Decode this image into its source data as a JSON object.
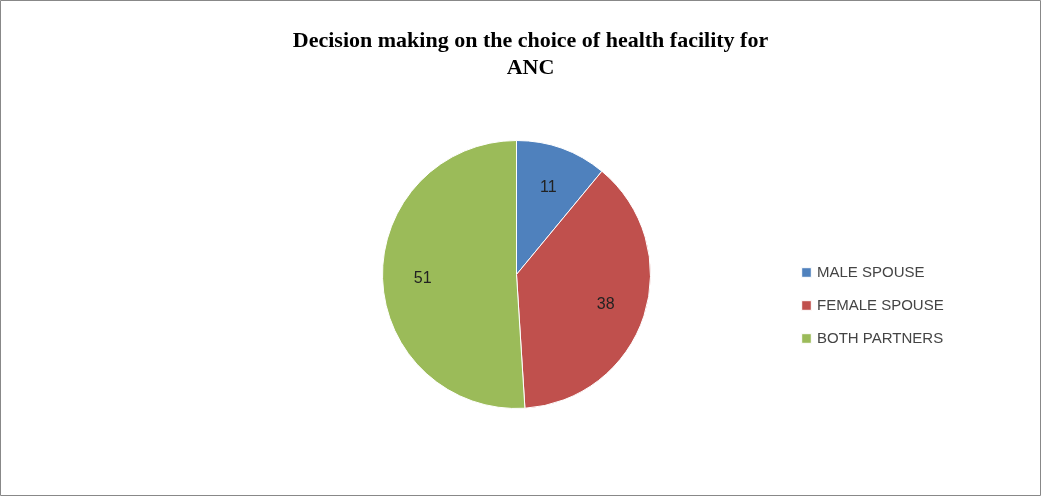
{
  "chart_data": {
    "type": "pie",
    "title": "Decision making on the choice of health facility for ANC",
    "categories": [
      "MALE SPOUSE",
      "FEMALE SPOUSE",
      "BOTH PARTNERS"
    ],
    "values": [
      11,
      38,
      51
    ],
    "colors": [
      "#4f81bd",
      "#c0504d",
      "#9bbb59"
    ],
    "data_labels": true,
    "legend": "right"
  }
}
